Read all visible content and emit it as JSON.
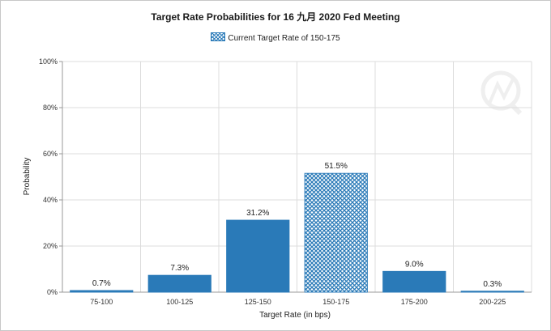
{
  "chart_data": {
    "type": "bar",
    "title": "Target Rate Probabilities for 16 九月 2020 Fed Meeting",
    "legend": {
      "label": "Current Target Rate of 150-175",
      "placement": "top-center"
    },
    "xlabel": "Target Rate (in bps)",
    "ylabel": "Probability",
    "categories": [
      "75-100",
      "100-125",
      "125-150",
      "150-175",
      "175-200",
      "200-225"
    ],
    "values": [
      0.7,
      7.3,
      31.2,
      51.5,
      9.0,
      0.3
    ],
    "value_labels": [
      "0.7%",
      "7.3%",
      "31.2%",
      "51.5%",
      "9.0%",
      "0.3%"
    ],
    "current_category": "150-175",
    "ylim": [
      0,
      100
    ],
    "yticks": [
      0,
      20,
      40,
      60,
      80,
      100
    ],
    "ytick_labels": [
      "0%",
      "20%",
      "40%",
      "60%",
      "80%",
      "100%"
    ],
    "grid": true,
    "colors": {
      "bar": "#2a7ab8",
      "grid": "#dcdcdc",
      "axis": "#999999"
    }
  }
}
